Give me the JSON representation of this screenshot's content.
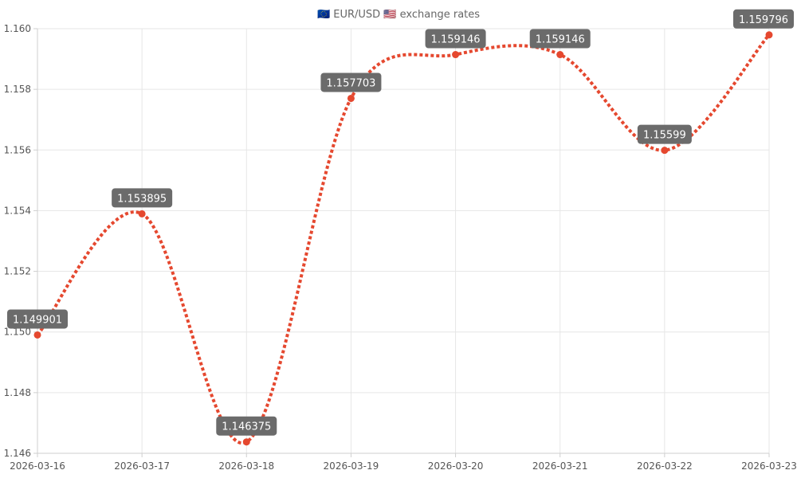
{
  "chart_data": {
    "type": "line",
    "title": "🇪🇺 EUR/USD 🇺🇸 exchange rates",
    "x": [
      "2026-03-16",
      "2026-03-17",
      "2026-03-18",
      "2026-03-19",
      "2026-03-20",
      "2026-03-21",
      "2026-03-22",
      "2026-03-23"
    ],
    "series": [
      {
        "values": [
          1.149901,
          1.153895,
          1.146375,
          1.157703,
          1.159146,
          1.159146,
          1.15599,
          1.159796
        ]
      }
    ],
    "data_labels": [
      "1.149901",
      "1.153895",
      "1.146375",
      "1.157703",
      "1.159146",
      "1.159146",
      "1.15599",
      "1.159796"
    ],
    "ylim": [
      1.146,
      1.16
    ],
    "yticks": [
      "1.146",
      "1.148",
      "1.150",
      "1.152",
      "1.154",
      "1.156",
      "1.158",
      "1.160"
    ],
    "grid": true,
    "line_style": "dotted",
    "line_color": "#e5482f",
    "point_color": "#e5482f",
    "label_box_color": "#6b6b6b"
  }
}
